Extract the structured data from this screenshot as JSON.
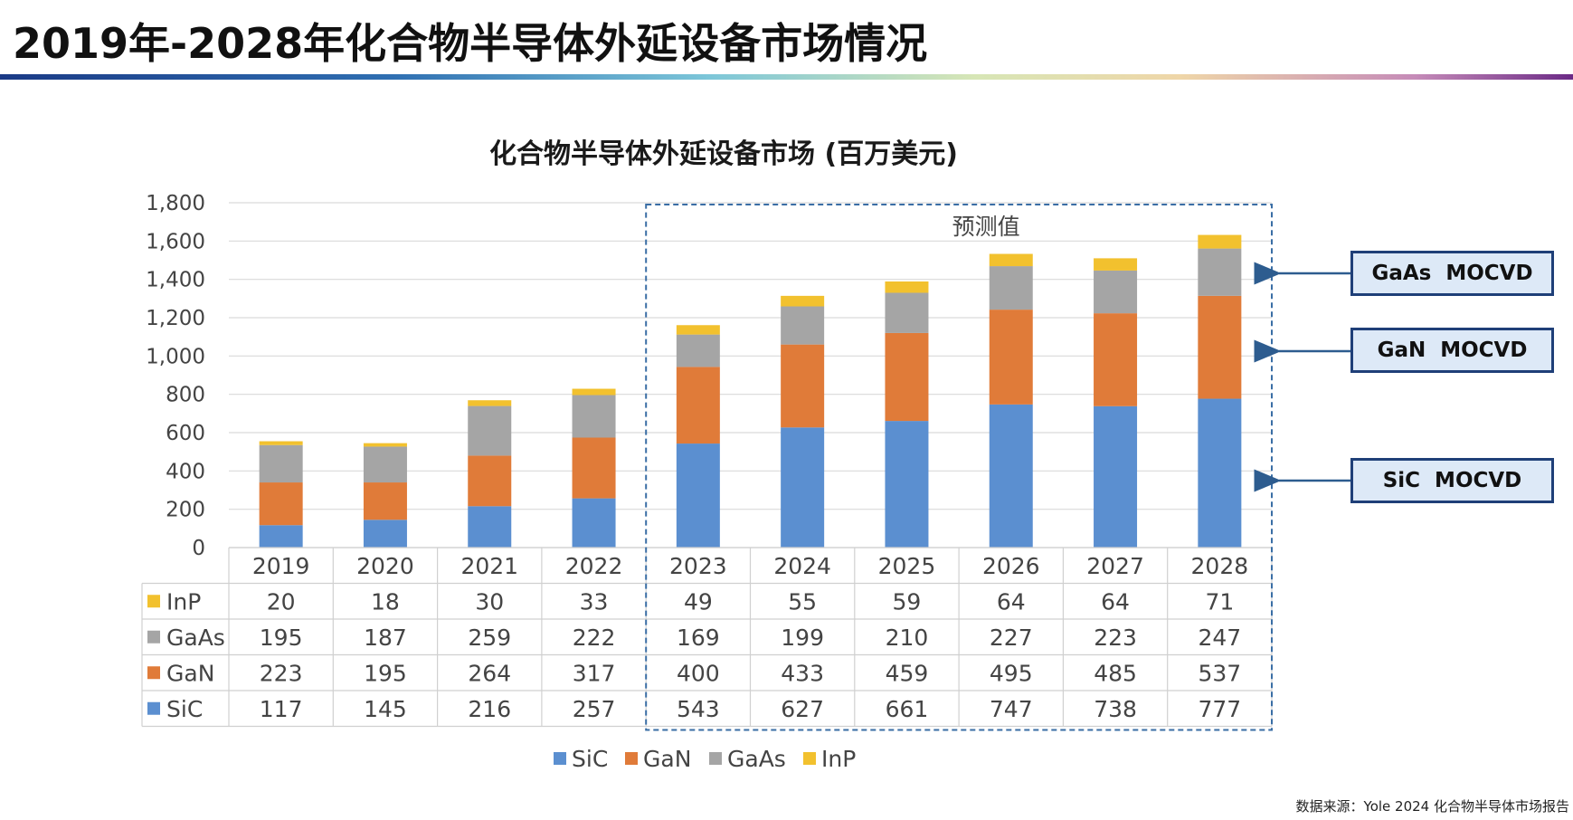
{
  "page": {
    "title": "2019年-2028年化合物半导体外延设备市场情况",
    "source": "数据来源：Yole 2024 化合物半导体市场报告"
  },
  "chart_data": {
    "type": "bar",
    "stacked": true,
    "title": "化合物半导体外延设备市场 (百万美元)",
    "categories": [
      "2019",
      "2020",
      "2021",
      "2022",
      "2023",
      "2024",
      "2025",
      "2026",
      "2027",
      "2028"
    ],
    "series": [
      {
        "name": "SiC",
        "color": "#5b8fd0",
        "values": [
          117,
          145,
          216,
          257,
          543,
          627,
          661,
          747,
          738,
          777
        ]
      },
      {
        "name": "GaN",
        "color": "#e07b39",
        "values": [
          223,
          195,
          264,
          317,
          400,
          433,
          459,
          495,
          485,
          537
        ]
      },
      {
        "name": "GaAs",
        "color": "#a5a5a5",
        "values": [
          195,
          187,
          259,
          222,
          169,
          199,
          210,
          227,
          223,
          247
        ]
      },
      {
        "name": "InP",
        "color": "#f2c12e",
        "values": [
          20,
          18,
          30,
          33,
          49,
          55,
          59,
          64,
          64,
          71
        ]
      }
    ],
    "table_row_order": [
      "InP",
      "GaAs",
      "GaN",
      "SiC"
    ],
    "ylim": [
      0,
      1800
    ],
    "yticks": [
      "0",
      "200",
      "400",
      "600",
      "800",
      "1,000",
      "1,200",
      "1,400",
      "1,600",
      "1,800"
    ],
    "grid": true,
    "legend": "bottom",
    "forecast_label": "预测值",
    "forecast_start": "2023",
    "annotations": [
      {
        "label": "GaAs  MOCVD",
        "points_to": "GaAs"
      },
      {
        "label": "GaN  MOCVD",
        "points_to": "GaN"
      },
      {
        "label": "SiC  MOCVD",
        "points_to": "SiC"
      }
    ]
  }
}
